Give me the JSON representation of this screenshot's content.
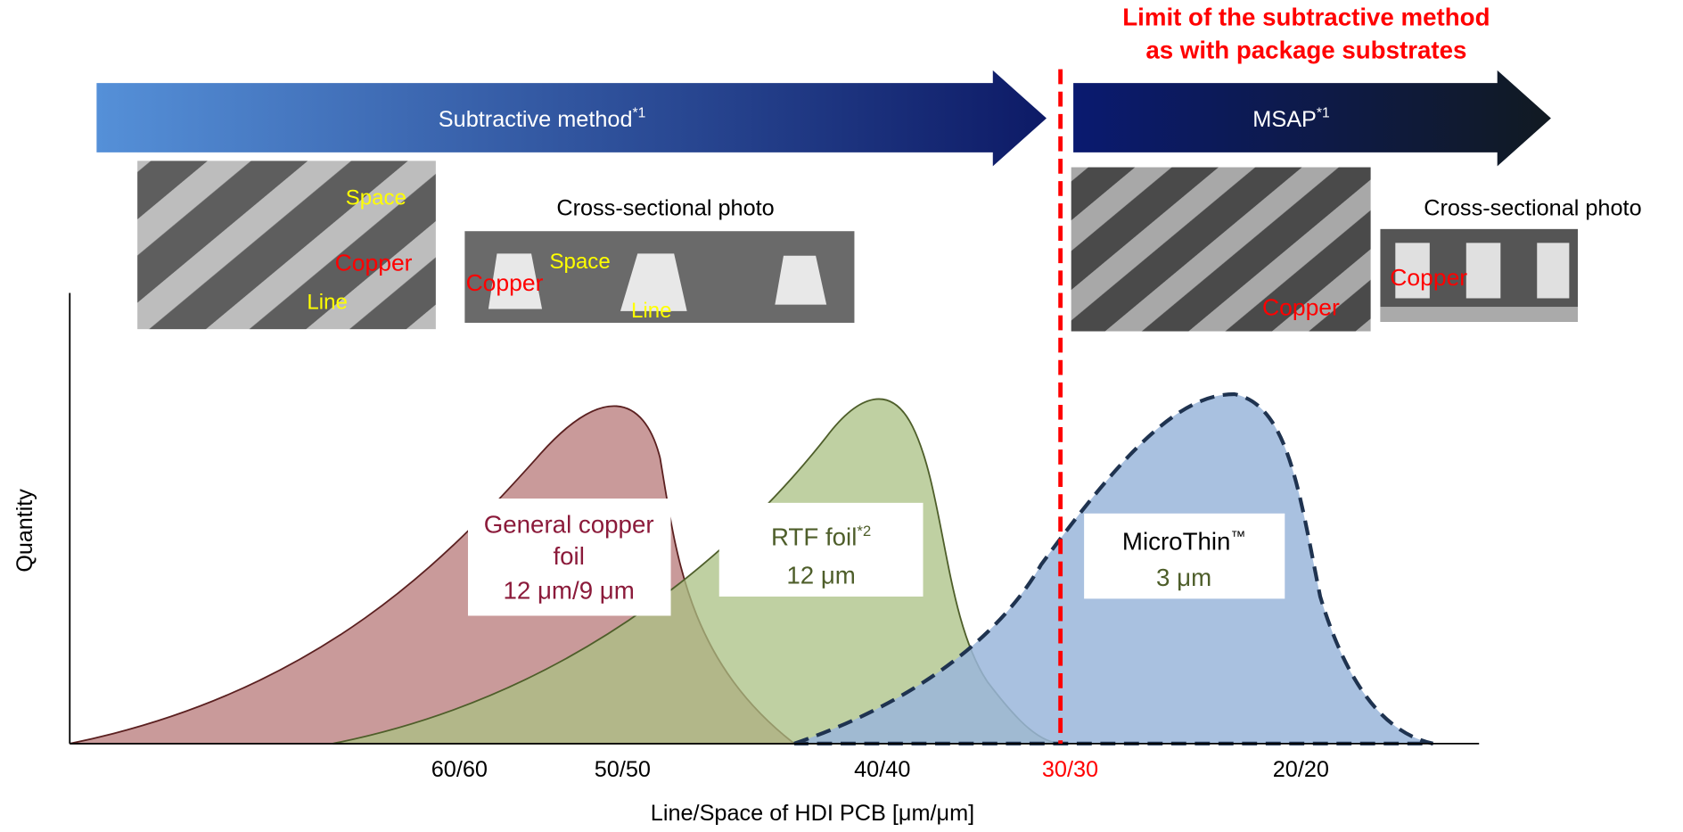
{
  "limit_note": {
    "lines": [
      "Limit of the subtractive method",
      "as with package substrates"
    ]
  },
  "arrows": [
    {
      "label": "Subtractive method",
      "note": "*1"
    },
    {
      "label": "MSAP",
      "note": "*1"
    }
  ],
  "photos": [
    {
      "labels": [
        "Space",
        "Copper",
        "Line"
      ]
    },
    {
      "caption": "Cross-sectional photo",
      "labels": [
        "Copper",
        "Space",
        "Line"
      ]
    },
    {
      "labels": [
        "Copper"
      ]
    },
    {
      "caption": "Cross-sectional photo",
      "labels": [
        "Copper"
      ]
    }
  ],
  "axes": {
    "y_label": "Quantity",
    "x_label": "Line/Space of HDI PCB [μm/μm]",
    "x_ticks": [
      "60/60",
      "50/50",
      "40/40",
      "30/30",
      "20/20"
    ]
  },
  "distributions": [
    {
      "lines": [
        "General copper",
        "foil",
        "12 μm/9 μm"
      ]
    },
    {
      "name": "RTF foil",
      "note": "*2",
      "detail": "12 μm"
    },
    {
      "name": "MicroThin",
      "note": "™",
      "detail": "3 μm"
    }
  ]
}
